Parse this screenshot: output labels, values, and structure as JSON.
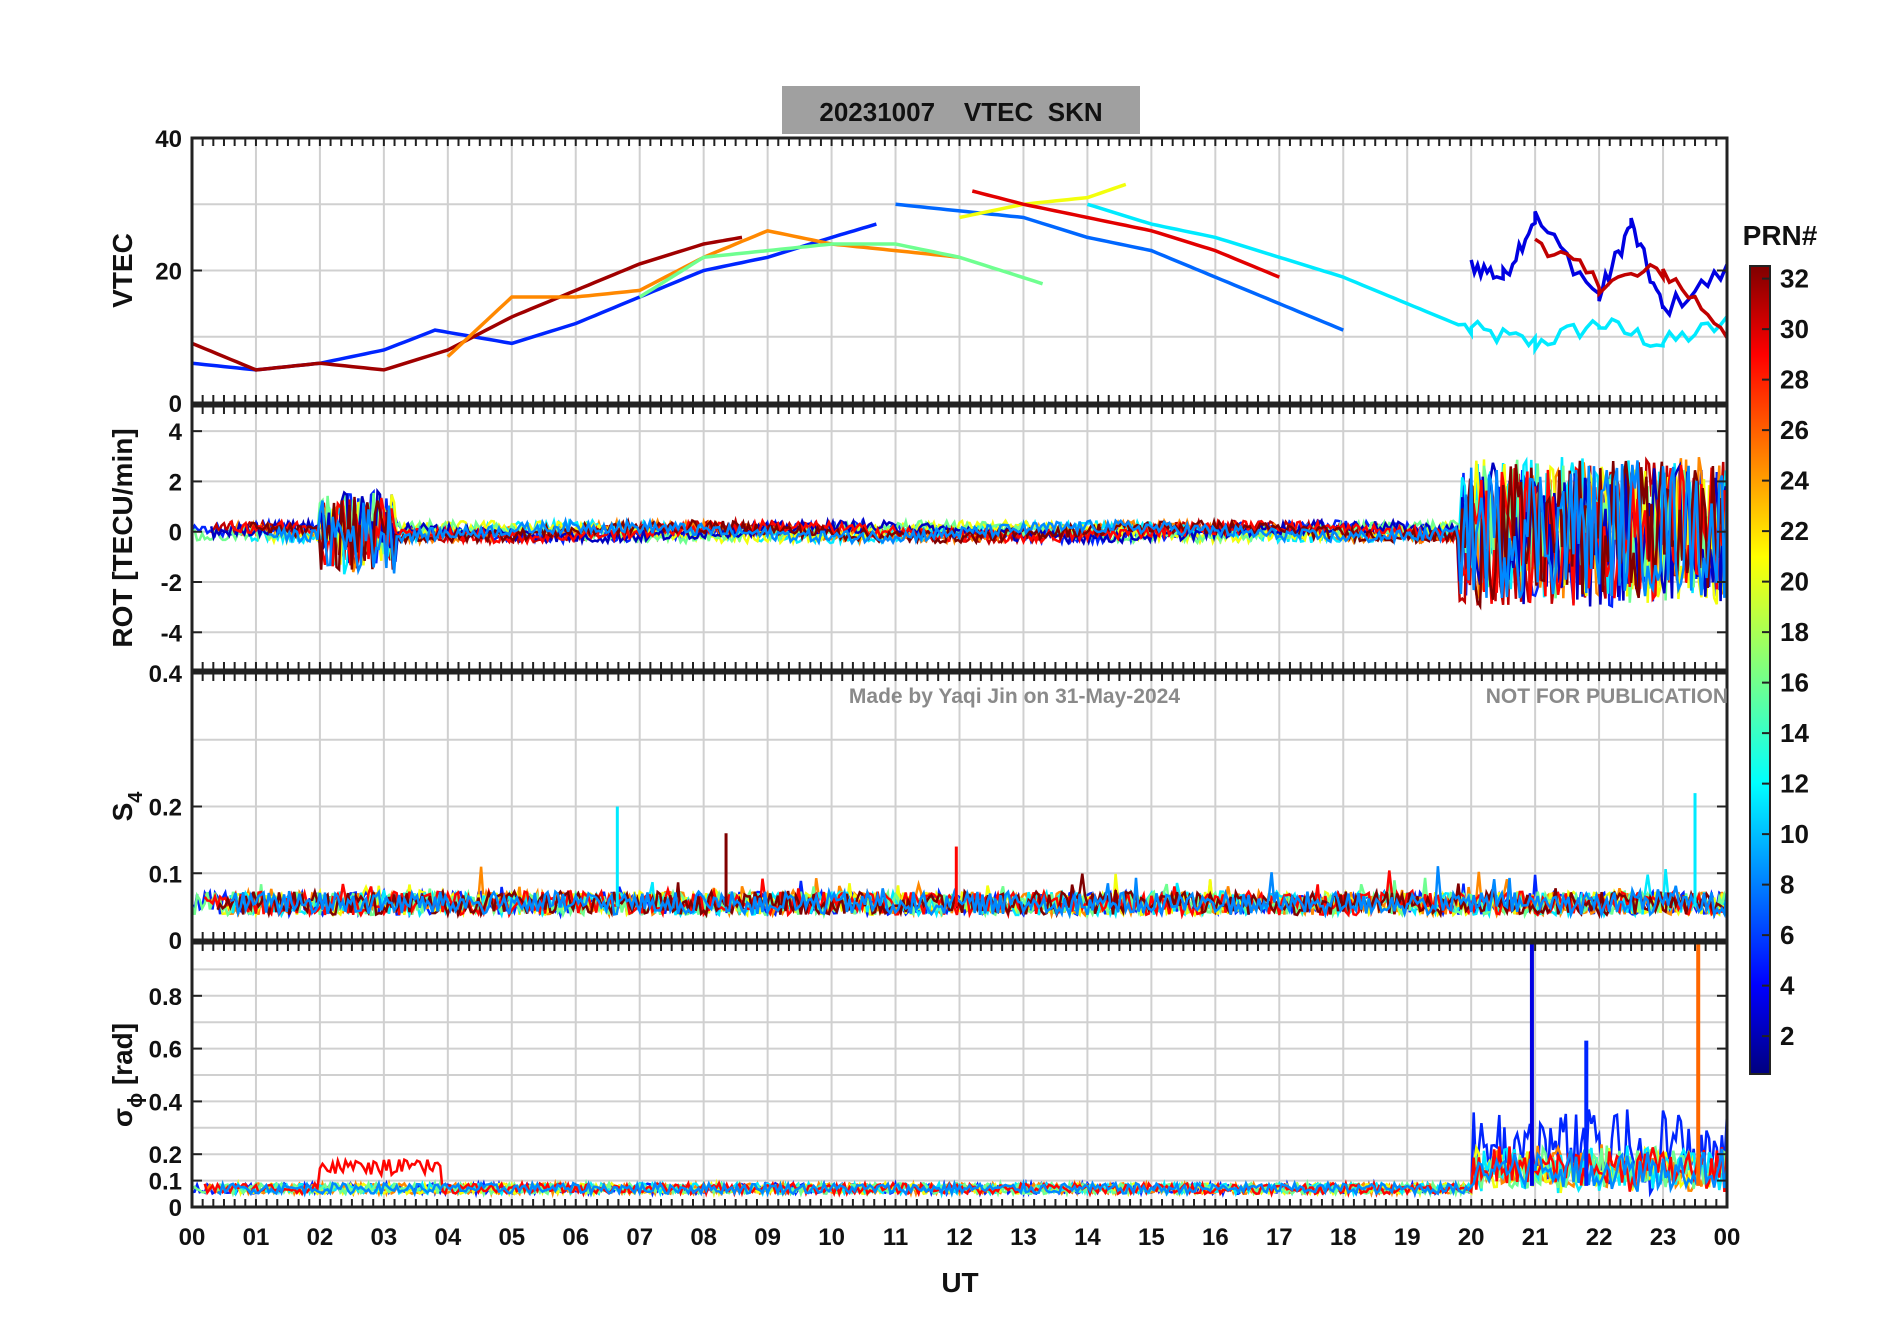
{
  "figure": {
    "title": "20231007    VTEC  SKN",
    "watermark_left": "Made by Yaqi Jin on 31-May-2024",
    "watermark_right": "NOT FOR PUBLICATION"
  },
  "chart_data": [
    {
      "id": "vtec",
      "type": "line",
      "ylabel": "VTEC",
      "ylim": [
        0,
        40
      ],
      "yticks": [
        0,
        20,
        40
      ],
      "xlim": [
        0,
        24
      ],
      "description_series": "Multiple PRN satellite tracks colored by PRN number",
      "series": [
        {
          "prn": 6,
          "x": [
            0,
            1,
            2,
            3,
            3.8,
            5,
            6,
            7,
            8,
            9,
            10,
            10.7
          ],
          "values": [
            6,
            5,
            6,
            8,
            11,
            9,
            12,
            16,
            20,
            22,
            25,
            27
          ]
        },
        {
          "prn": 31,
          "x": [
            0,
            1,
            2,
            3,
            4,
            5,
            6,
            7,
            8,
            8.6
          ],
          "values": [
            9,
            5,
            6,
            5,
            8,
            13,
            17,
            21,
            24,
            25
          ]
        },
        {
          "prn": 24,
          "x": [
            4,
            5,
            6,
            7,
            8,
            9,
            10,
            11,
            12
          ],
          "values": [
            7,
            16,
            16,
            17,
            22,
            26,
            24,
            23,
            22
          ]
        },
        {
          "prn": 8,
          "x": [
            11,
            12,
            13,
            14,
            15,
            16,
            17,
            18
          ],
          "values": [
            30,
            29,
            28,
            25,
            23,
            19,
            15,
            11
          ]
        },
        {
          "prn": 20,
          "x": [
            12,
            13,
            14,
            14.6
          ],
          "values": [
            28,
            30,
            31,
            33
          ]
        },
        {
          "prn": 29,
          "x": [
            12.2,
            13,
            14,
            15,
            16,
            17
          ],
          "values": [
            32,
            30,
            28,
            26,
            23,
            19
          ]
        },
        {
          "prn": 16,
          "x": [
            7,
            8,
            9,
            10,
            11,
            12,
            13.3
          ],
          "values": [
            16,
            22,
            23,
            24,
            24,
            22,
            18
          ]
        },
        {
          "prn": 12,
          "x": [
            14,
            15,
            16,
            17,
            18,
            19,
            20,
            21,
            22,
            23,
            24
          ],
          "values": [
            30,
            27,
            25,
            22,
            19,
            15,
            11,
            9,
            12,
            9,
            12
          ]
        },
        {
          "prn": 4,
          "x": [
            20,
            20.5,
            21,
            22,
            22.5,
            23,
            24
          ],
          "values": [
            21,
            19,
            28,
            16,
            27,
            14,
            20
          ]
        },
        {
          "prn": 30,
          "x": [
            21,
            22,
            23,
            24
          ],
          "values": [
            25,
            18,
            20,
            11
          ]
        }
      ]
    },
    {
      "id": "rot",
      "type": "line",
      "ylabel": "ROT [TECU/min]",
      "ylim": [
        -5.5,
        5
      ],
      "yticks": [
        -4,
        -2,
        0,
        2,
        4
      ],
      "xlim": [
        0,
        24
      ]
    },
    {
      "id": "s4",
      "type": "line",
      "ylabel_main": "S",
      "ylabel_sub": "4",
      "ylim": [
        0,
        0.4
      ],
      "yticks_labels": [
        "0",
        "0.1",
        "0.2",
        "0.4"
      ],
      "yticks": [
        0,
        0.1,
        0.2,
        0.4
      ],
      "xlim": [
        0,
        24
      ],
      "spikes": [
        {
          "x": 6.65,
          "value": 0.2,
          "prn": 12
        },
        {
          "x": 8.35,
          "value": 0.16,
          "prn": 32
        },
        {
          "x": 11.95,
          "value": 0.14,
          "prn": 28
        },
        {
          "x": 23.5,
          "value": 0.22,
          "prn": 12
        }
      ]
    },
    {
      "id": "sigphi",
      "type": "line",
      "ylabel_main": "σ",
      "ylabel_sub": "ϕ",
      "ylabel_unit": " [rad]",
      "ylim": [
        0,
        1
      ],
      "yticks_labels": [
        "0",
        "0.1",
        "0.2",
        "0.4",
        "0.6",
        "0.8"
      ],
      "yticks": [
        0,
        0.1,
        0.2,
        0.4,
        0.6,
        0.8
      ],
      "xlim": [
        0,
        24
      ],
      "spikes": [
        {
          "x": 20.95,
          "value": 1.0,
          "prn": 4
        },
        {
          "x": 21.8,
          "value": 0.63,
          "prn": 6
        },
        {
          "x": 23.55,
          "value": 1.0,
          "prn": 25
        }
      ]
    }
  ],
  "xaxis": {
    "label": "UT",
    "ticks": [
      "00",
      "01",
      "02",
      "03",
      "04",
      "05",
      "06",
      "07",
      "08",
      "09",
      "10",
      "11",
      "12",
      "13",
      "14",
      "15",
      "16",
      "17",
      "18",
      "19",
      "20",
      "21",
      "22",
      "23",
      "00"
    ]
  },
  "colorbar": {
    "label": "PRN#",
    "range": [
      1,
      32
    ],
    "ticks": [
      "32",
      "30",
      "28",
      "26",
      "24",
      "22",
      "20",
      "18",
      "16",
      "14",
      "12",
      "10",
      "8",
      "6",
      "4",
      "2"
    ]
  },
  "colors": {
    "title_box": "#a0a0a0",
    "grid": "#d0d0d0",
    "watermark": "#8a8a8a"
  }
}
